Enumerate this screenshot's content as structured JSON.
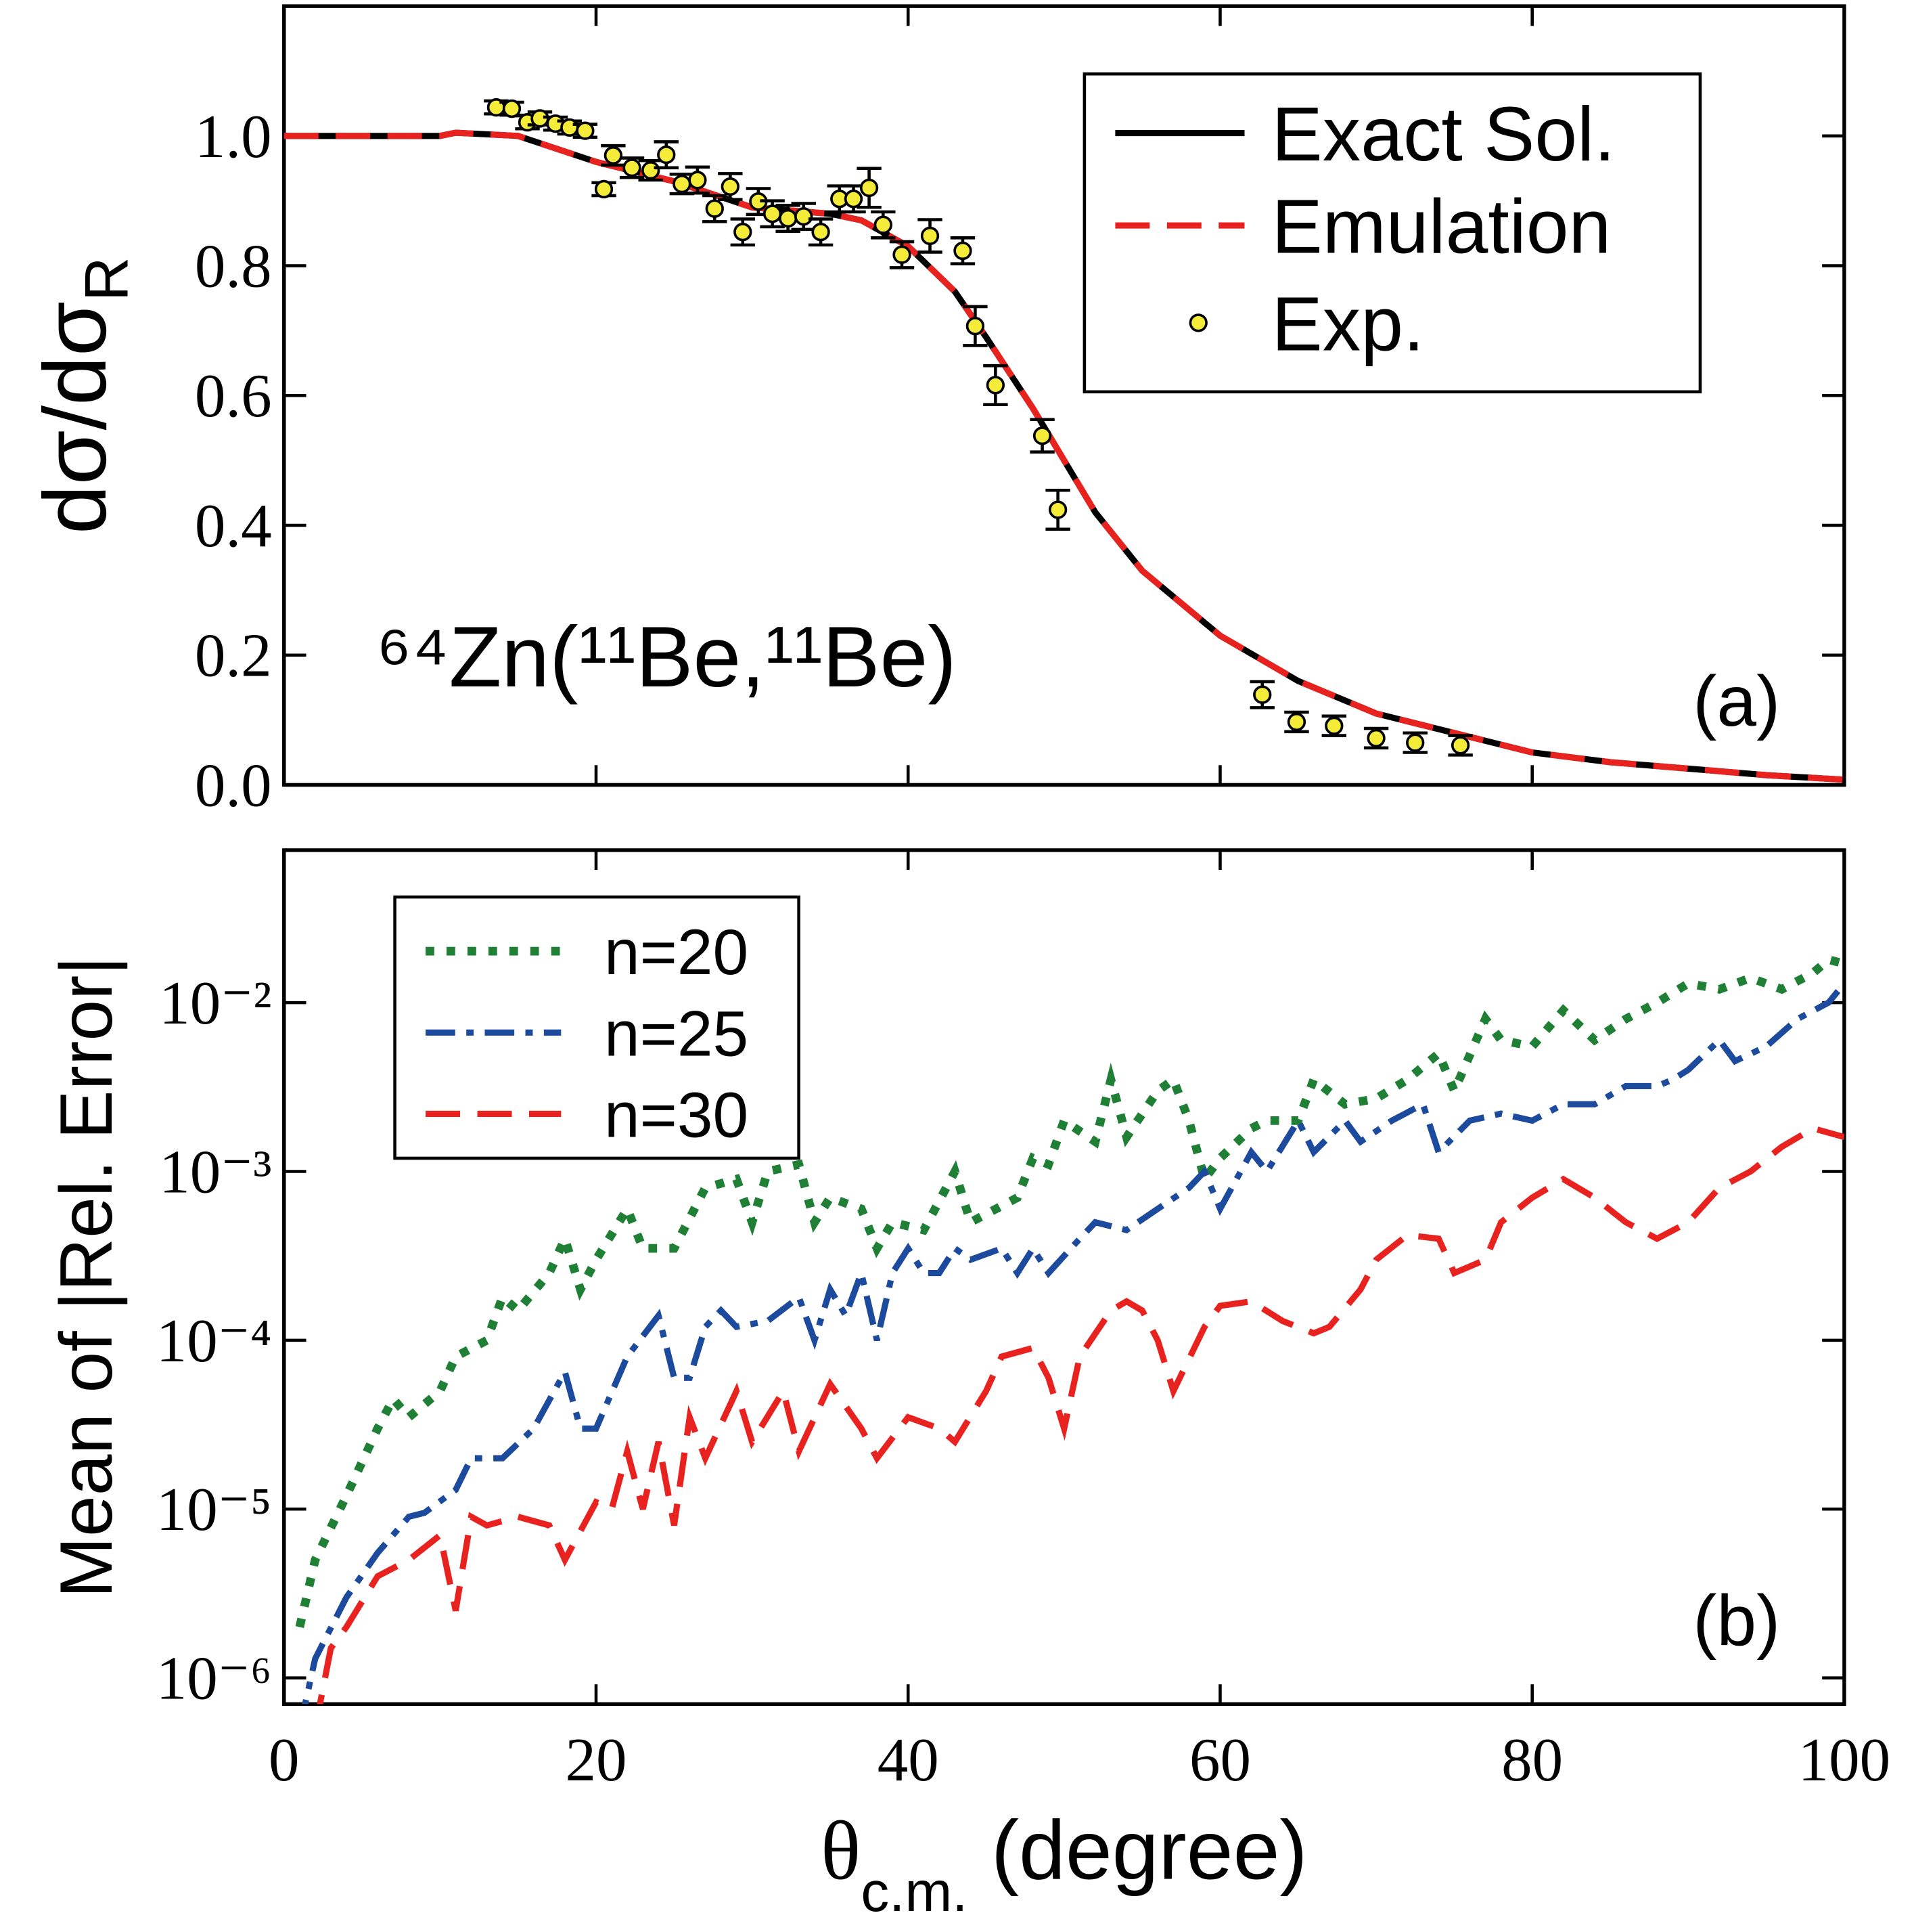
{
  "chart_data": [
    {
      "type": "line",
      "ylabel": {
        "text": "dσ/dσ",
        "subscript": "R"
      },
      "annotation": "⁶⁴Zn(¹¹Be,¹¹Be)",
      "panel_label": "(a)",
      "xlim": [
        0,
        100
      ],
      "ylim": [
        0,
        1.2
      ],
      "yticks": [
        {
          "value": 0,
          "label": "0.0"
        },
        0.2,
        0.4,
        0.6,
        0.8,
        {
          "value": 1,
          "label": "1.0"
        }
      ],
      "legend": "top-right",
      "series": [
        {
          "name": "Exact Sol.",
          "color": "#000000",
          "line_style": "solid",
          "x": [
            0,
            10,
            11,
            15,
            20,
            25,
            30,
            35,
            37,
            40,
            43,
            45,
            48,
            50,
            52,
            55,
            60,
            65,
            70,
            75,
            80,
            85,
            90,
            95,
            100
          ],
          "values": [
            1.0,
            1.0,
            1.005,
            1.0,
            0.96,
            0.93,
            0.89,
            0.88,
            0.87,
            0.83,
            0.76,
            0.69,
            0.58,
            0.5,
            0.42,
            0.33,
            0.23,
            0.16,
            0.11,
            0.08,
            0.05,
            0.035,
            0.025,
            0.015,
            0.008
          ]
        },
        {
          "name": "Emulation",
          "color": "#e8221f",
          "line_style": "dashed",
          "x": [
            0,
            10,
            11,
            15,
            20,
            25,
            30,
            35,
            37,
            40,
            43,
            45,
            48,
            50,
            52,
            55,
            60,
            65,
            70,
            75,
            80,
            85,
            90,
            95,
            100
          ],
          "values": [
            1.0,
            1.0,
            1.005,
            1.0,
            0.96,
            0.93,
            0.89,
            0.88,
            0.87,
            0.83,
            0.76,
            0.69,
            0.58,
            0.5,
            0.42,
            0.33,
            0.23,
            0.16,
            0.11,
            0.08,
            0.05,
            0.035,
            0.025,
            0.015,
            0.008
          ]
        },
        {
          "name": "Exp.",
          "color": "#f5ec3a",
          "marker": "circle",
          "x": [
            13.6,
            14.6,
            15.6,
            16.4,
            17.4,
            18.3,
            19.3,
            20.5,
            21.1,
            22.3,
            23.5,
            24.5,
            25.5,
            26.5,
            27.6,
            28.6,
            29.4,
            30.4,
            31.3,
            32.3,
            33.3,
            34.4,
            35.6,
            36.5,
            37.5,
            38.4,
            39.6,
            41.4,
            43.5,
            44.3,
            45.6,
            48.6,
            49.6,
            62.7,
            64.9,
            67.3,
            70.0,
            72.5,
            75.4
          ],
          "values": [
            1.044,
            1.042,
            1.021,
            1.027,
            1.019,
            1.013,
            1.008,
            0.918,
            0.97,
            0.951,
            0.947,
            0.971,
            0.926,
            0.932,
            0.888,
            0.922,
            0.852,
            0.899,
            0.88,
            0.873,
            0.876,
            0.852,
            0.903,
            0.903,
            0.92,
            0.863,
            0.817,
            0.846,
            0.823,
            0.707,
            0.616,
            0.538,
            0.424,
            0.139,
            0.097,
            0.091,
            0.072,
            0.065,
            0.061
          ],
          "errors": [
            0.01,
            0.01,
            0.01,
            0.01,
            0.01,
            0.01,
            0.01,
            0.01,
            0.015,
            0.015,
            0.015,
            0.02,
            0.015,
            0.02,
            0.02,
            0.02,
            0.02,
            0.02,
            0.02,
            0.02,
            0.02,
            0.02,
            0.02,
            0.02,
            0.03,
            0.02,
            0.02,
            0.025,
            0.02,
            0.03,
            0.03,
            0.025,
            0.03,
            0.02,
            0.015,
            0.015,
            0.015,
            0.015,
            0.015
          ]
        }
      ]
    },
    {
      "type": "line",
      "ylabel": {
        "text": "Mean of |Rel. Error|"
      },
      "xlabel": {
        "text": "θ",
        "subscript": "c.m.",
        "suffix": " (degree)"
      },
      "panel_label": "(b)",
      "xlim": [
        0,
        100
      ],
      "xticks": [
        0,
        20,
        40,
        60,
        80,
        100
      ],
      "ylim": [
        7e-07,
        0.08
      ],
      "log_y": true,
      "yticks": [
        {
          "value": 1e-06,
          "label": "10⁻⁶"
        },
        {
          "value": 1e-05,
          "label": "10⁻⁵"
        },
        {
          "value": 0.0001,
          "label": "10⁻⁴"
        },
        {
          "value": 0.001,
          "label": "10⁻³"
        },
        {
          "value": 0.01,
          "label": "10⁻²"
        }
      ],
      "legend": "top-left",
      "series": [
        {
          "name": "n=20",
          "color": "#1e7f35",
          "line_style": "dotted",
          "x": [
            1,
            2,
            4,
            6,
            7,
            8,
            10,
            11,
            13,
            14,
            15,
            17,
            18,
            19,
            20,
            22,
            23,
            25,
            27,
            29,
            30,
            31,
            33,
            34,
            35,
            37,
            38,
            39,
            41,
            43,
            44,
            47,
            48,
            49,
            50,
            52,
            53,
            54,
            56,
            57,
            58,
            59,
            60,
            62,
            63,
            65,
            66,
            68,
            70,
            72,
            74,
            75,
            77,
            78,
            80,
            82,
            84,
            86,
            88,
            90,
            92,
            94,
            96,
            98,
            99,
            100
          ],
          "values": [
            2e-06,
            5e-06,
            1.2e-05,
            3e-05,
            4.5e-05,
            3.5e-05,
            5e-05,
            8e-05,
            0.0001,
            0.00018,
            0.00015,
            0.00025,
            0.0004,
            0.0002,
            0.0003,
            0.0006,
            0.00035,
            0.00035,
            0.0008,
            0.0009,
            0.0005,
            0.001,
            0.0011,
            0.0005,
            0.0007,
            0.0006,
            0.00035,
            0.0005,
            0.00045,
            0.001,
            0.0005,
            0.0007,
            0.0012,
            0.0011,
            0.002,
            0.0015,
            0.0035,
            0.0016,
            0.003,
            0.0035,
            0.002,
            0.0009,
            0.0012,
            0.0018,
            0.002,
            0.002,
            0.0035,
            0.0025,
            0.0027,
            0.0035,
            0.005,
            0.003,
            0.008,
            0.006,
            0.0055,
            0.009,
            0.006,
            0.008,
            0.01,
            0.013,
            0.012,
            0.014,
            0.012,
            0.015,
            0.018,
            0.017
          ]
        },
        {
          "name": "n=25",
          "color": "#1c4a9c",
          "line_style": "dashdot",
          "x": [
            1,
            2,
            4,
            6,
            8,
            9,
            11,
            12,
            14,
            16,
            18,
            19,
            20,
            22,
            24,
            25,
            26,
            27,
            28,
            29,
            31,
            33,
            34,
            35,
            36,
            37,
            38,
            39,
            40,
            41,
            42,
            43,
            44,
            46,
            47,
            48,
            49,
            51,
            52,
            54,
            56,
            58,
            59,
            60,
            62,
            63,
            65,
            66,
            68,
            69,
            71,
            73,
            74,
            76,
            78,
            80,
            82,
            84,
            86,
            88,
            89,
            90,
            92,
            93,
            95,
            97,
            99,
            100
          ],
          "values": [
            5e-07,
            1.3e-06,
            3e-06,
            5.5e-06,
            9e-06,
            9.5e-06,
            1.3e-05,
            2e-05,
            2e-05,
            3e-05,
            6.5e-05,
            3e-05,
            3e-05,
            8e-05,
            0.00014,
            6e-05,
            6e-05,
            0.00012,
            0.00015,
            0.00012,
            0.00013,
            0.00018,
            0.0001,
            0.0002,
            0.00014,
            0.00025,
            0.0001,
            0.00025,
            0.00035,
            0.00025,
            0.00025,
            0.00035,
            0.0003,
            0.00035,
            0.00025,
            0.00035,
            0.00025,
            0.0004,
            0.0005,
            0.00045,
            0.0006,
            0.0008,
            0.001,
            0.0006,
            0.0013,
            0.001,
            0.002,
            0.0013,
            0.002,
            0.0015,
            0.002,
            0.0025,
            0.0013,
            0.002,
            0.0022,
            0.002,
            0.0025,
            0.0025,
            0.0032,
            0.0032,
            0.0035,
            0.004,
            0.006,
            0.0045,
            0.0055,
            0.008,
            0.01,
            0.013
          ]
        },
        {
          "name": "n=30",
          "color": "#e8221f",
          "line_style": "dashed",
          "x": [
            2,
            3,
            4,
            6,
            8,
            10,
            11,
            12,
            13,
            15,
            17,
            18,
            20,
            21,
            22,
            23,
            24,
            25,
            26,
            27,
            29,
            30,
            32,
            33,
            35,
            37,
            38,
            40,
            42,
            43,
            45,
            46,
            48,
            49,
            50,
            51,
            53,
            54,
            55,
            56,
            57,
            59,
            60,
            62,
            64,
            66,
            67,
            69,
            70,
            72,
            74,
            75,
            77,
            78,
            80,
            82,
            84,
            86,
            88,
            90,
            92,
            94,
            96,
            98,
            100
          ],
          "values": [
            5e-07,
            1.5e-06,
            2e-06,
            4e-06,
            5e-06,
            7e-06,
            2.5e-06,
            9e-06,
            8e-06,
            9e-06,
            8e-06,
            5e-06,
            1.1e-05,
            1e-05,
            2.2e-05,
            1e-05,
            2.5e-05,
            8e-06,
            3.5e-05,
            2e-05,
            5e-05,
            2.5e-05,
            5e-05,
            2.2e-05,
            5.5e-05,
            3e-05,
            2e-05,
            3.5e-05,
            3e-05,
            2.5e-05,
            5e-05,
            8e-05,
            9e-05,
            6e-05,
            3e-05,
            8e-05,
            0.00015,
            0.00017,
            0.00015,
            0.0001,
            5e-05,
            0.00012,
            0.00016,
            0.00017,
            0.00013,
            0.00011,
            0.00012,
            0.0002,
            0.0003,
            0.00042,
            0.0004,
            0.00025,
            0.0003,
            0.0005,
            0.0007,
            0.0009,
            0.0007,
            0.0005,
            0.0004,
            0.0005,
            0.0008,
            0.001,
            0.0014,
            0.0018,
            0.0016
          ]
        }
      ]
    }
  ]
}
